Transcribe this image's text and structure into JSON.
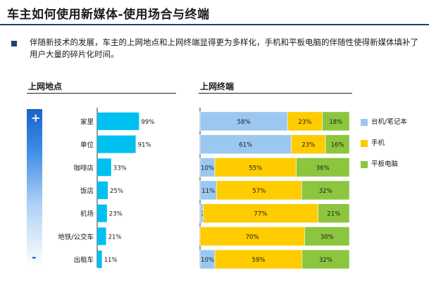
{
  "slide": {
    "title": "车主如何使用新媒体-使用场合与终端",
    "description": "伴随新技术的发展，车主的上网地点和上网终端显得更为多样化，手机和平板电脑的伴随性使得新媒体填补了用户大量的碎片化时间。",
    "locations_title": "上网地点",
    "devices_title": "上网终端",
    "plus_label": "+",
    "minus_label": "-"
  },
  "colors": {
    "rule": "#1f3f7a",
    "location_bar": "#00c0f0",
    "laptop": "#9bc8f0",
    "phone": "#ffcc00",
    "tablet": "#8cc63f"
  },
  "chart_data": [
    {
      "type": "bar",
      "orientation": "horizontal",
      "title": "上网地点",
      "categories": [
        "家里",
        "单位",
        "咖啡店",
        "饭店",
        "机场",
        "地铁/公交车",
        "出租车"
      ],
      "values": [
        99,
        91,
        33,
        25,
        23,
        21,
        11
      ],
      "value_labels": [
        "99%",
        "91%",
        "33%",
        "25%",
        "23%",
        "21%",
        "11%"
      ],
      "unit": "%",
      "xlim": [
        0,
        100
      ],
      "grid": false
    },
    {
      "type": "bar",
      "orientation": "horizontal",
      "stacked": true,
      "title": "上网终端",
      "categories": [
        "家里",
        "单位",
        "咖啡店",
        "饭店",
        "机场",
        "地铁/公交车",
        "出租车"
      ],
      "series": [
        {
          "name": "台机/笔记本",
          "values": [
            58,
            61,
            10,
            11,
            2,
            0,
            10
          ],
          "labels": [
            "58%",
            "61%",
            "10%",
            "11%",
            "2%",
            "0%",
            "10%"
          ]
        },
        {
          "name": "手机",
          "values": [
            23,
            23,
            55,
            57,
            77,
            70,
            59
          ],
          "labels": [
            "23%",
            "23%",
            "55%",
            "57%",
            "77%",
            "70%",
            "59%"
          ]
        },
        {
          "name": "平板电脑",
          "values": [
            18,
            16,
            36,
            32,
            21,
            30,
            32
          ],
          "labels": [
            "18%",
            "16%",
            "36%",
            "32%",
            "21%",
            "30%",
            "32%"
          ]
        }
      ],
      "legend_position": "right",
      "grid": false
    }
  ]
}
